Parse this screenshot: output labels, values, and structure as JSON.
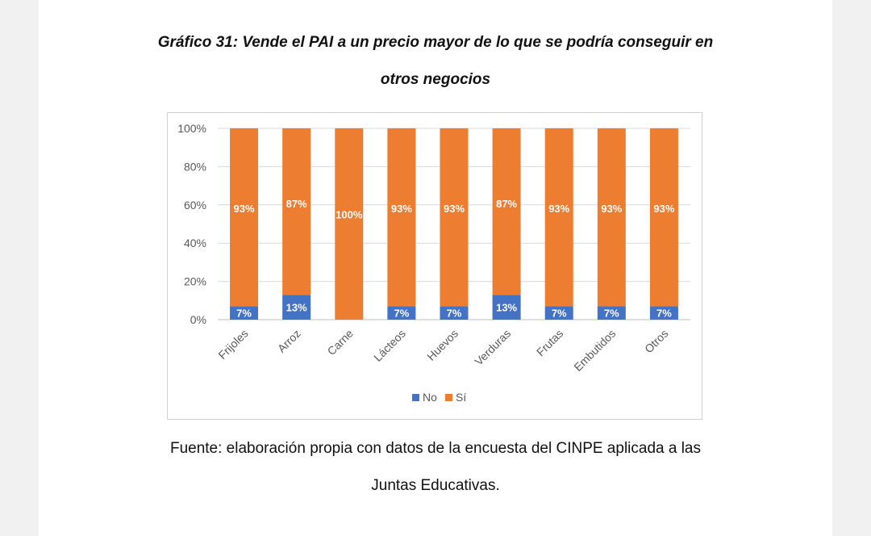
{
  "title_line1": "Gráfico 31: Vende el PAI a un precio mayor de lo que se podría conseguir en",
  "title_line2": "otros negocios",
  "caption_line1": "Fuente: elaboración propia con datos de la encuesta del CINPE aplicada a las",
  "caption_line2": "Juntas Educativas.",
  "chart_data": {
    "type": "bar",
    "stacked": true,
    "categories": [
      "Frijoles",
      "Arroz",
      "Carne",
      "Lácteos",
      "Huevos",
      "Verduras",
      "Frutas",
      "Embutidos",
      "Otros"
    ],
    "series": [
      {
        "name": "No",
        "color": "#4472c4",
        "values": [
          7,
          13,
          0,
          7,
          7,
          13,
          7,
          7,
          7
        ],
        "labels": [
          "7%",
          "13%",
          "",
          "7%",
          "7%",
          "13%",
          "7%",
          "7%",
          "7%"
        ]
      },
      {
        "name": "Sí",
        "color": "#ed7d31",
        "values": [
          93,
          87,
          100,
          93,
          93,
          87,
          93,
          93,
          93
        ],
        "labels": [
          "93%",
          "87%",
          "100%",
          "93%",
          "93%",
          "87%",
          "93%",
          "93%",
          "93%"
        ]
      }
    ],
    "ylim": [
      0,
      100
    ],
    "yticks": [
      "0%",
      "20%",
      "40%",
      "60%",
      "80%",
      "100%"
    ],
    "grid": true,
    "legend_position": "bottom"
  }
}
